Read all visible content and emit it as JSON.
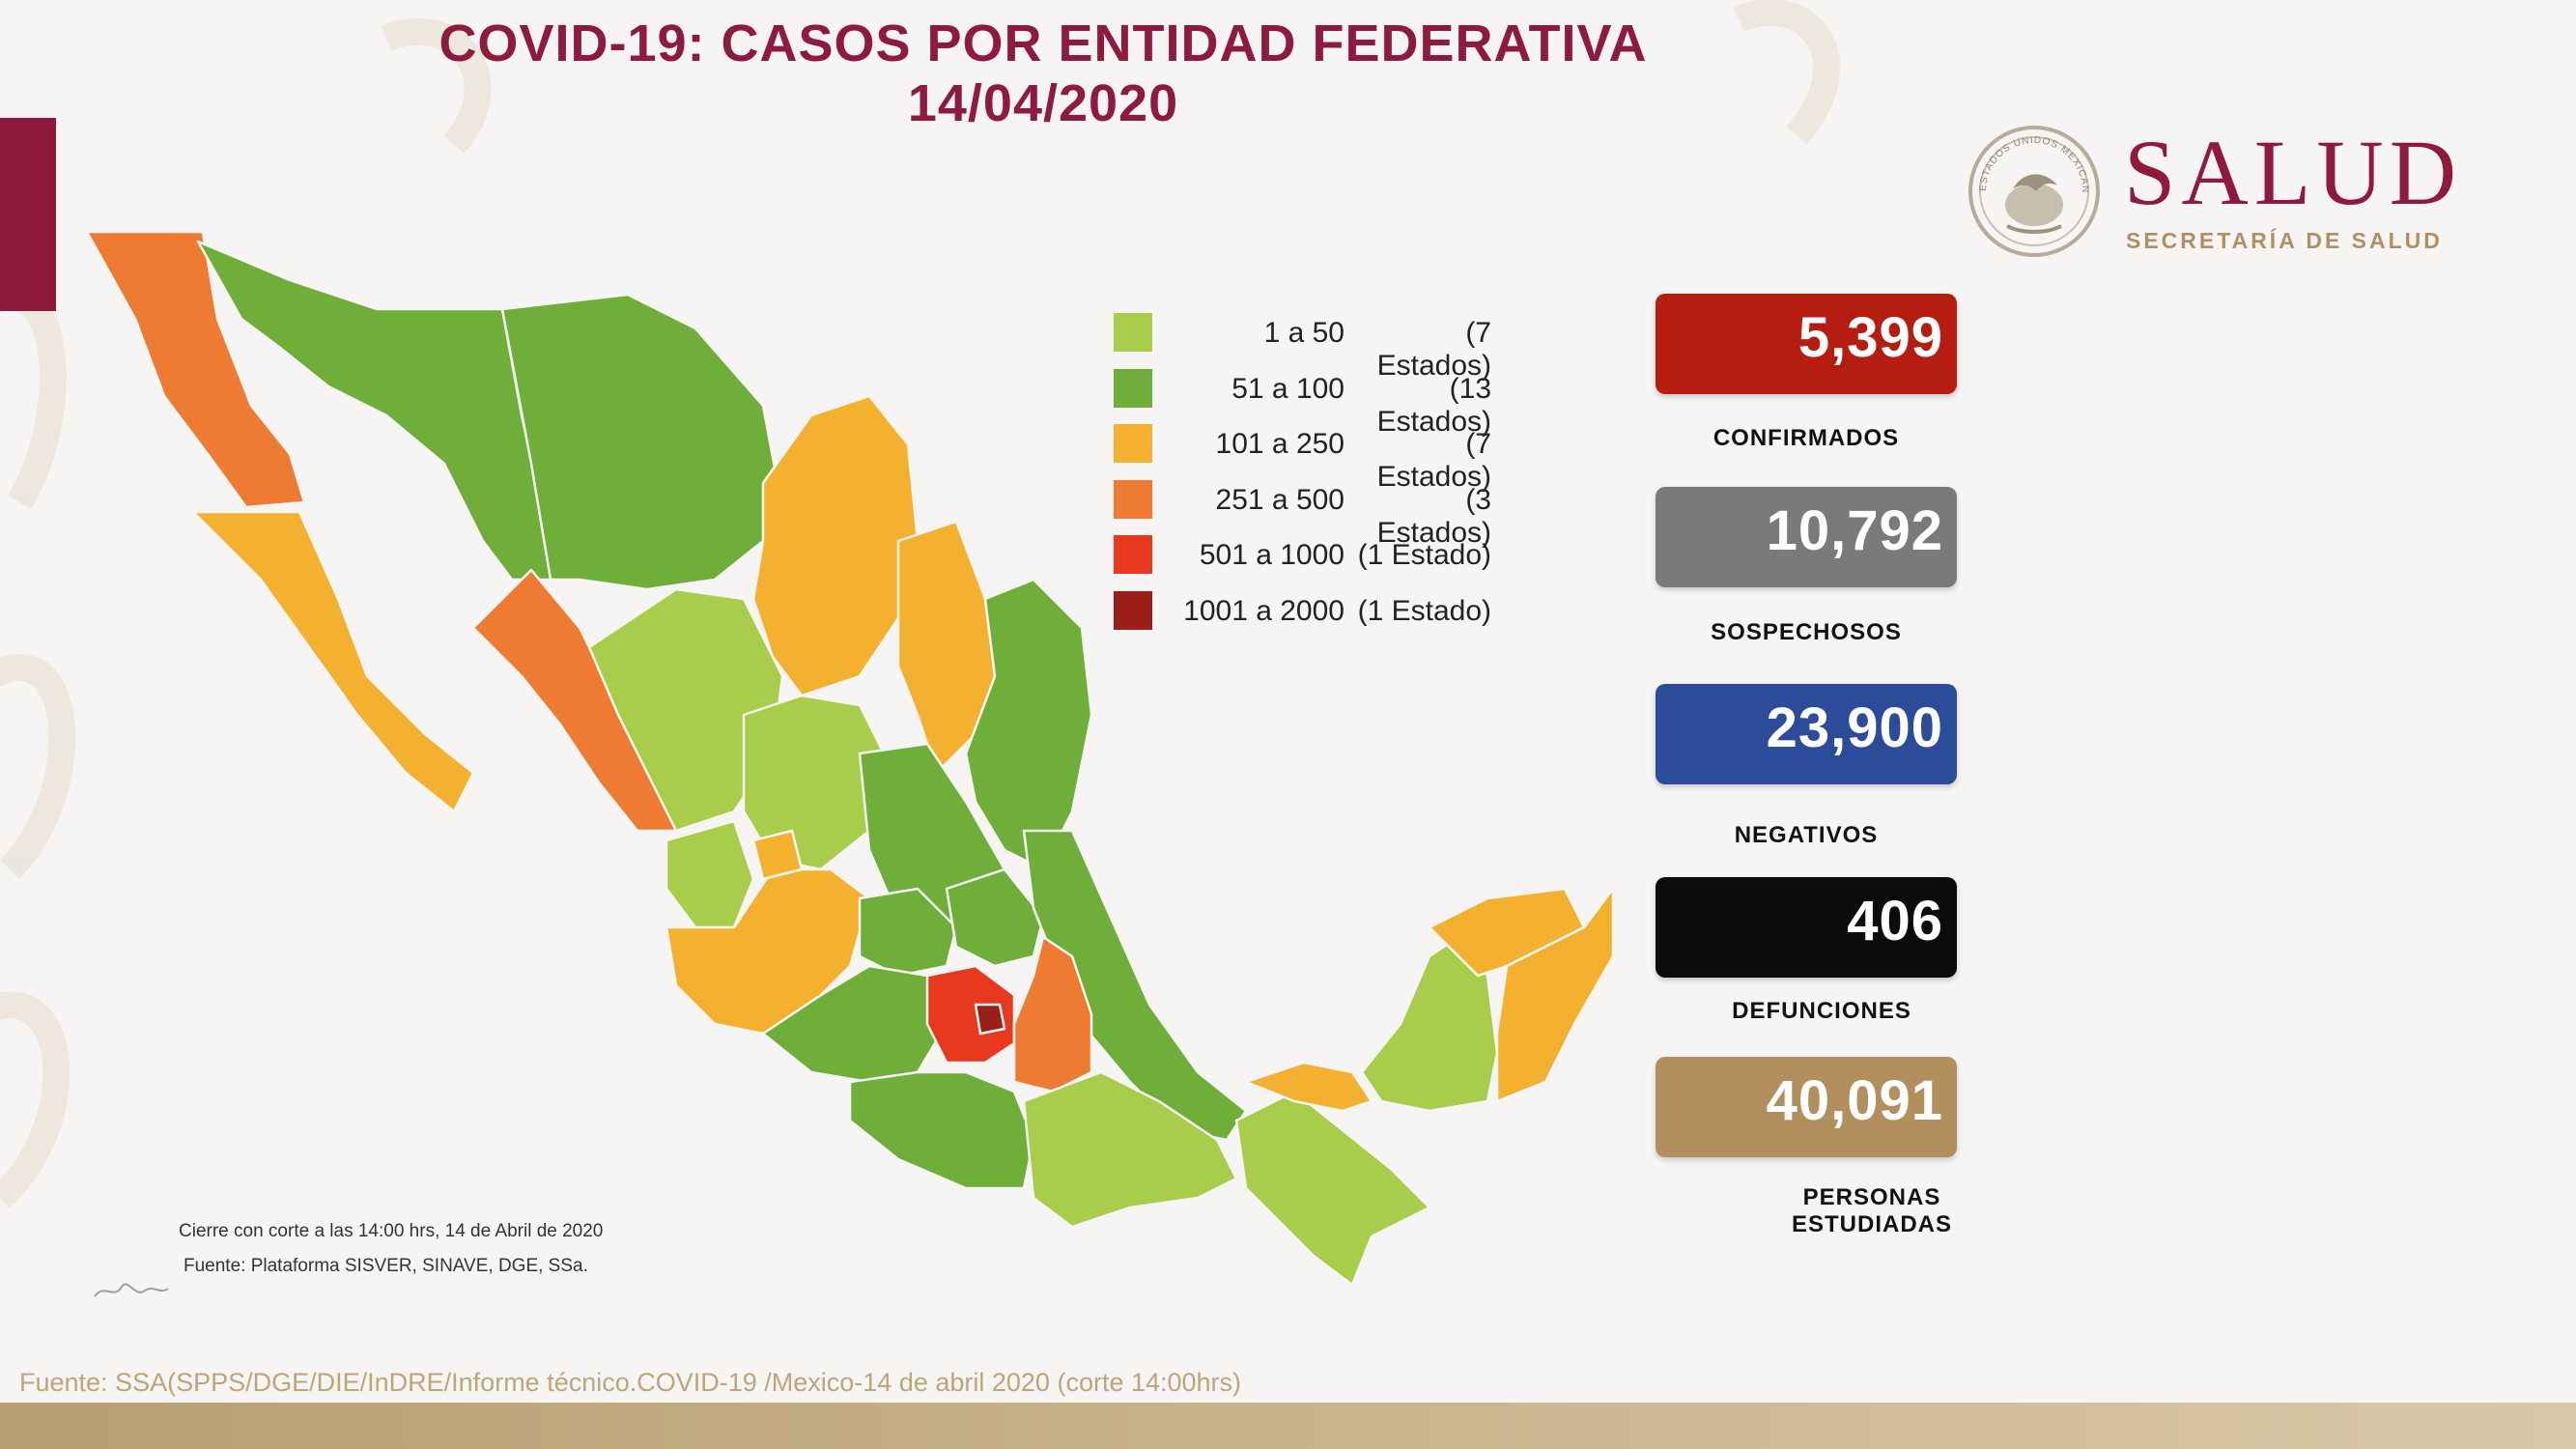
{
  "title": {
    "line1": "COVID-19: CASOS POR ENTIDAD FEDERATIVA",
    "line2": "14/04/2020"
  },
  "logo": {
    "word": "SALUD",
    "subtitle": "SECRETARÍA DE SALUD",
    "seal_text": "ESTADOS UNIDOS MEXICANOS",
    "seal_icon": "mexican-coat-of-arms-icon"
  },
  "legend": [
    {
      "range": "1 a 50",
      "count": "(7 Estados)",
      "color": "#a8cd4a"
    },
    {
      "range": "51 a 100",
      "count": "(13 Estados)",
      "color": "#6fae38"
    },
    {
      "range": "101 a 250",
      "count": "(7 Estados)",
      "color": "#f3b12f"
    },
    {
      "range": "251 a 500",
      "count": "(3 Estados)",
      "color": "#ef7a32"
    },
    {
      "range": "501 a 1000",
      "count": "(1 Estado)",
      "color": "#e8391f"
    },
    {
      "range": "1001 a 2000",
      "count": "(1 Estado)",
      "color": "#9b1f19"
    }
  ],
  "stats": [
    {
      "value": "5,399",
      "label": "CONFIRMADOS",
      "color": "#b51d10"
    },
    {
      "value": "10,792",
      "label": "SOSPECHOSOS",
      "color": "#7a7a7a"
    },
    {
      "value": "23,900",
      "label": "NEGATIVOS",
      "color": "#2c4c9a"
    },
    {
      "value": "406",
      "label": "DEFUNCIONES",
      "color": "#0c0c0c"
    },
    {
      "value": "40,091",
      "label": "PERSONAS ESTUDIADAS",
      "label_lines": [
        "PERSONAS",
        "ESTUDIADAS"
      ],
      "color": "#b38f5e"
    }
  ],
  "notes": {
    "cierre": "Cierre con corte a las 14:00 hrs, 14 de Abril de 2020",
    "fuente_map": "Fuente: Plataforma SISVER, SINAVE, DGE, SSa."
  },
  "footer_source": "Fuente: SSA(SPPS/DGE/DIE/InDRE/Informe técnico.COVID-19 /Mexico-14 de abril 2020 (corte 14:00hrs)",
  "colors": {
    "brand_maroon": "#8e1a3d",
    "brand_gold": "#b08f62",
    "background": "#f6f5f3"
  }
}
